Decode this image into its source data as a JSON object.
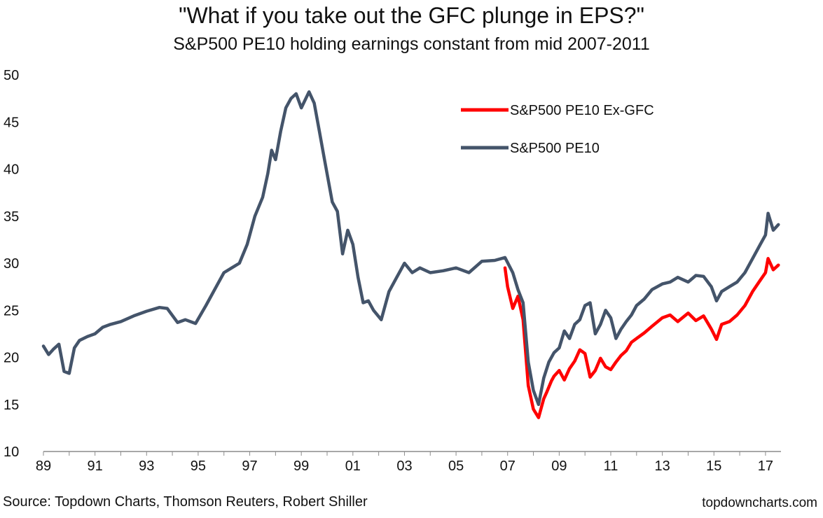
{
  "title": "\"What if you take out the GFC plunge in EPS?\"",
  "subtitle": "S&P500 PE10 holding earnings constant from mid 2007-2011",
  "source": "Source: Topdown Charts, Thomson Reuters, Robert Shiller",
  "website": "topdowncharts.com",
  "chart_data": {
    "type": "line",
    "x_unit": "year",
    "xlim": [
      1989,
      2017.6
    ],
    "ylim": [
      10,
      50
    ],
    "y_ticks": [
      10,
      15,
      20,
      25,
      30,
      35,
      40,
      45,
      50
    ],
    "x_tick_labels": [
      "89",
      "91",
      "93",
      "95",
      "97",
      "99",
      "01",
      "03",
      "05",
      "07",
      "09",
      "11",
      "13",
      "15",
      "17"
    ],
    "x_tick_years": [
      1989,
      1991,
      1993,
      1995,
      1997,
      1999,
      2001,
      2003,
      2005,
      2007,
      2009,
      2011,
      2013,
      2015,
      2017
    ],
    "legend_position": "top-right",
    "grid": false,
    "series": [
      {
        "name": "S&P500 PE10 Ex-GFC",
        "color": "#ff0000",
        "x": [
          2006.9,
          2007.0,
          2007.2,
          2007.4,
          2007.6,
          2007.8,
          2008.0,
          2008.2,
          2008.4,
          2008.5,
          2008.7,
          2008.8,
          2009.0,
          2009.2,
          2009.4,
          2009.6,
          2009.8,
          2010.0,
          2010.2,
          2010.4,
          2010.6,
          2010.8,
          2011.0,
          2011.2,
          2011.4,
          2011.6,
          2011.8,
          2012.0,
          2012.3,
          2012.6,
          2013.0,
          2013.3,
          2013.6,
          2014.0,
          2014.3,
          2014.6,
          2014.9,
          2015.1,
          2015.3,
          2015.6,
          2015.9,
          2016.2,
          2016.5,
          2016.8,
          2017.0,
          2017.1,
          2017.3,
          2017.5
        ],
        "y": [
          29.5,
          27.5,
          25.2,
          26.5,
          24.0,
          17.0,
          14.5,
          13.6,
          15.6,
          16.2,
          17.5,
          18.0,
          18.6,
          17.6,
          18.8,
          19.6,
          20.8,
          20.4,
          17.9,
          18.6,
          19.9,
          19.0,
          18.7,
          19.5,
          20.2,
          20.7,
          21.6,
          22.0,
          22.6,
          23.3,
          24.2,
          24.5,
          23.8,
          24.7,
          23.9,
          24.4,
          23.0,
          21.9,
          23.5,
          23.8,
          24.5,
          25.5,
          27.0,
          28.2,
          29.0,
          30.5,
          29.3,
          29.8
        ]
      },
      {
        "name": "S&P500 PE10",
        "color": "#44546a",
        "x": [
          1989.0,
          1989.2,
          1989.4,
          1989.6,
          1989.8,
          1990.0,
          1990.2,
          1990.4,
          1990.7,
          1991.0,
          1991.3,
          1991.6,
          1992.0,
          1992.5,
          1993.0,
          1993.5,
          1993.8,
          1994.2,
          1994.5,
          1994.9,
          1995.3,
          1995.7,
          1996.0,
          1996.3,
          1996.6,
          1996.9,
          1997.2,
          1997.5,
          1997.7,
          1997.85,
          1998.0,
          1998.2,
          1998.4,
          1998.6,
          1998.8,
          1999.0,
          1999.3,
          1999.5,
          1999.7,
          1999.9,
          2000.2,
          2000.4,
          2000.6,
          2000.8,
          2001.0,
          2001.2,
          2001.4,
          2001.6,
          2001.8,
          2002.1,
          2002.4,
          2002.7,
          2003.0,
          2003.3,
          2003.6,
          2004.0,
          2004.5,
          2005.0,
          2005.5,
          2006.0,
          2006.5,
          2006.9,
          2007.2,
          2007.4,
          2007.6,
          2007.8,
          2008.0,
          2008.2,
          2008.4,
          2008.6,
          2008.8,
          2009.0,
          2009.2,
          2009.4,
          2009.6,
          2009.8,
          2010.0,
          2010.2,
          2010.4,
          2010.6,
          2010.8,
          2011.0,
          2011.2,
          2011.4,
          2011.6,
          2011.8,
          2012.0,
          2012.3,
          2012.6,
          2013.0,
          2013.3,
          2013.6,
          2014.0,
          2014.3,
          2014.6,
          2014.9,
          2015.1,
          2015.3,
          2015.6,
          2015.9,
          2016.2,
          2016.5,
          2016.8,
          2017.0,
          2017.1,
          2017.3,
          2017.5
        ],
        "y": [
          21.2,
          20.3,
          20.9,
          21.4,
          18.5,
          18.3,
          21.0,
          21.8,
          22.2,
          22.5,
          23.2,
          23.5,
          23.8,
          24.4,
          24.9,
          25.3,
          25.2,
          23.7,
          24.0,
          23.6,
          25.5,
          27.5,
          29.0,
          29.5,
          30.0,
          32.0,
          35.0,
          37.0,
          39.5,
          42.0,
          41.0,
          44.0,
          46.5,
          47.5,
          48.0,
          46.5,
          48.2,
          47.0,
          44.0,
          41.0,
          36.5,
          35.5,
          31.0,
          33.5,
          32.0,
          28.5,
          25.8,
          26.0,
          25.0,
          24.0,
          27.0,
          28.5,
          30.0,
          29.0,
          29.5,
          29.0,
          29.2,
          29.5,
          29.0,
          30.2,
          30.3,
          30.6,
          29.0,
          27.2,
          25.8,
          19.5,
          16.5,
          15.0,
          17.8,
          19.5,
          20.5,
          21.0,
          22.8,
          22.0,
          23.5,
          24.0,
          25.5,
          25.8,
          22.5,
          23.5,
          25.0,
          24.2,
          22.0,
          23.0,
          23.8,
          24.5,
          25.5,
          26.2,
          27.2,
          27.8,
          28.0,
          28.5,
          28.0,
          28.7,
          28.6,
          27.5,
          26.0,
          27.0,
          27.5,
          28.0,
          29.0,
          30.5,
          32.0,
          33.0,
          35.3,
          33.5,
          34.1
        ]
      }
    ]
  }
}
